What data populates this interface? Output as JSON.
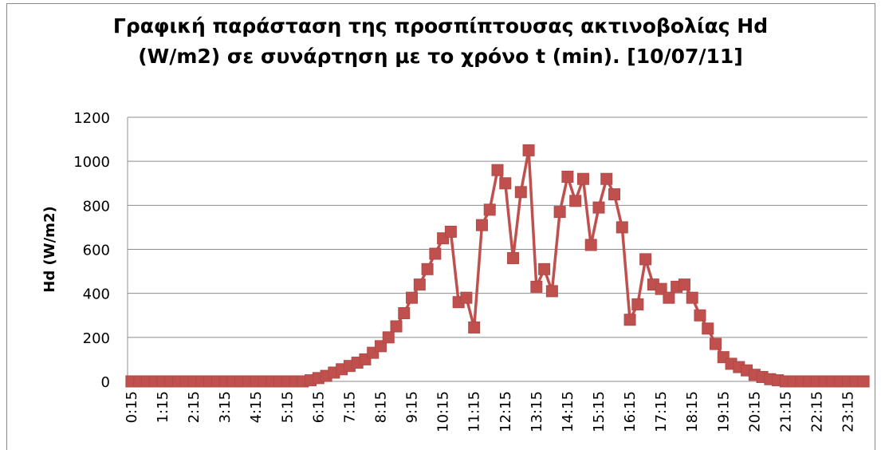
{
  "chart_data": {
    "type": "line",
    "title": "Γραφική παράσταση της προσπίπτουσας ακτινοβολίας Hd\n(W/m2) σε συνάρτηση με το χρόνο t (min). [10/07/11]",
    "y_label": "Hd (W/m2)",
    "categories": [
      "0:15",
      null,
      null,
      null,
      "1:15",
      null,
      null,
      null,
      "2:15",
      null,
      null,
      null,
      "3:15",
      null,
      null,
      null,
      "4:15",
      null,
      null,
      null,
      "5:15",
      null,
      null,
      null,
      "6:15",
      null,
      null,
      null,
      "7:15",
      null,
      null,
      null,
      "8:15",
      null,
      null,
      null,
      "9:15",
      null,
      null,
      null,
      "10:15",
      null,
      null,
      null,
      "11:15",
      null,
      null,
      null,
      "12:15",
      null,
      null,
      null,
      "13:15",
      null,
      null,
      null,
      "14:15",
      null,
      null,
      null,
      "15:15",
      null,
      null,
      null,
      "16:15",
      null,
      null,
      null,
      "17:15",
      null,
      null,
      null,
      "18:15",
      null,
      null,
      null,
      "19:15",
      null,
      null,
      null,
      "20:15",
      null,
      null,
      null,
      "21:15",
      null,
      null,
      null,
      "22:15",
      null,
      null,
      null,
      "23:15",
      null,
      null
    ],
    "series": [
      {
        "color": "#c0504d",
        "values": [
          0,
          0,
          0,
          0,
          0,
          0,
          0,
          0,
          0,
          0,
          0,
          0,
          0,
          0,
          0,
          0,
          0,
          0,
          0,
          0,
          0,
          0,
          0,
          5,
          15,
          25,
          40,
          55,
          70,
          85,
          100,
          130,
          160,
          200,
          250,
          310,
          380,
          440,
          510,
          580,
          650,
          680,
          360,
          380,
          245,
          710,
          780,
          960,
          900,
          560,
          860,
          1050,
          430,
          510,
          410,
          770,
          930,
          820,
          920,
          620,
          790,
          920,
          850,
          700,
          280,
          350,
          555,
          440,
          420,
          380,
          430,
          440,
          380,
          300,
          240,
          170,
          110,
          80,
          65,
          50,
          30,
          20,
          10,
          5,
          0,
          0,
          0,
          0,
          0,
          0,
          0,
          0,
          0,
          0,
          0
        ]
      }
    ],
    "ylim": [
      0,
      1200
    ],
    "yticks": [
      0,
      200,
      400,
      600,
      800,
      1000,
      1200
    ],
    "grid": true
  }
}
